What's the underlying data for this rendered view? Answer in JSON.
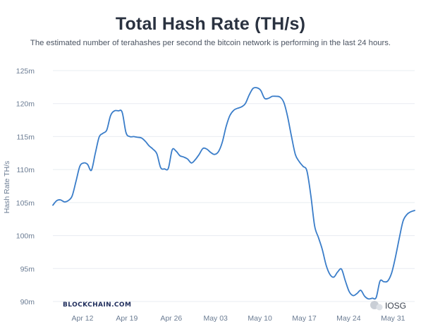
{
  "title": "Total Hash Rate (TH/s)",
  "subtitle": "The estimated number of terahashes per second the bitcoin network is performing in the last 24 hours.",
  "brand": "BLOCKCHAIN.COM",
  "watermark": "IOSG",
  "colors": {
    "line": "#3a7dc9",
    "grid": "#e8ecf1",
    "axis_text": "#6b7c93",
    "title": "#2a3240"
  },
  "chart_data": {
    "type": "line",
    "title": "Total Hash Rate (TH/s)",
    "subtitle": "The estimated number of terahashes per second the bitcoin network is performing in the last 24 hours.",
    "xlabel": "",
    "ylabel": "Hash Rate TH/s",
    "ylim": [
      90,
      125
    ],
    "yticks": [
      90,
      95,
      100,
      105,
      110,
      115,
      120,
      125
    ],
    "ytick_labels": [
      "90m",
      "95m",
      "100m",
      "105m",
      "110m",
      "115m",
      "120m",
      "125m"
    ],
    "xtick_labels": [
      "Apr 12",
      "Apr 19",
      "Apr 26",
      "May 03",
      "May 10",
      "May 17",
      "May 24",
      "May 31"
    ],
    "grid": true,
    "series": [
      {
        "values": [
          104.6,
          105.3,
          105.4,
          105.1,
          105.3,
          106.0,
          108.2,
          110.5,
          111.0,
          110.8,
          109.9,
          112.4,
          114.9,
          115.5,
          116.0,
          118.2,
          118.9,
          118.9,
          118.7,
          115.6,
          115.0,
          115.0,
          114.9,
          114.8,
          114.3,
          113.6,
          113.1,
          112.4,
          110.3,
          110.1,
          110.2,
          113.0,
          112.8,
          112.1,
          111.9,
          111.6,
          111.0,
          111.5,
          112.3,
          113.2,
          113.1,
          112.6,
          112.3,
          112.7,
          114.1,
          116.5,
          118.2,
          119.0,
          119.3,
          119.5,
          120.0,
          121.3,
          122.3,
          122.4,
          122.0,
          120.8,
          120.8,
          121.1,
          121.1,
          121.0,
          120.2,
          118.0,
          115.0,
          112.3,
          111.2,
          110.5,
          109.8,
          106.2,
          101.5,
          99.7,
          97.9,
          95.5,
          94.1,
          93.7,
          94.5,
          94.9,
          93.1,
          91.5,
          90.9,
          91.2,
          91.7,
          90.8,
          90.4,
          90.5,
          90.6,
          93.1,
          93.0,
          93.1,
          94.3,
          96.7,
          99.6,
          102.2,
          103.2,
          103.6,
          103.8
        ]
      }
    ]
  }
}
